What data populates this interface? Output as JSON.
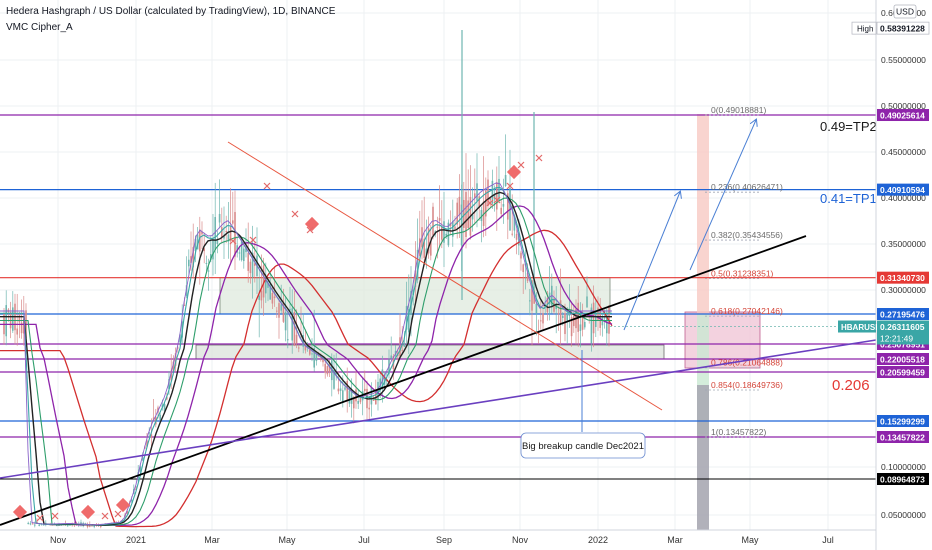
{
  "header": {
    "title": "Hedera Hashgraph / US Dollar (calculated by TradingView), 1D, BINANCE",
    "indicator": "VMC Cipher_A"
  },
  "currency_button": "USD",
  "high_label": "High",
  "colors": {
    "background": "#ffffff",
    "candle": "#6fb6b0",
    "candle_down": "#d88a8a",
    "grid": "#eef0f3",
    "axis_text": "#333333",
    "red_level": "#e53935",
    "blue_level": "#1e63d6",
    "purple_level": "#8e24aa",
    "black_level": "#000000",
    "trend_black": "#000000",
    "trend_purple": "#6a3fc0",
    "trend_red": "#e8563f",
    "box_green": "#dfeadd",
    "box_pink": "#f0c7d7",
    "arrow": "#4a7fd4",
    "ma_red": "#d32f2f",
    "ma_purple": "#8e24aa",
    "ma_green": "#2e9e6b",
    "ma_black": "#222222",
    "ma_teal": "#3aa6a6",
    "fib_line": "#a0a6b4",
    "fib_text": "#d4463a"
  },
  "chart_data": {
    "type": "candlestick",
    "symbol": "HBARUSD",
    "ylim": [
      0.03,
      0.61
    ],
    "x_ticks": [
      "Nov",
      "2021",
      "Mar",
      "May",
      "Jul",
      "Sep",
      "Nov",
      "2022",
      "Mar",
      "May",
      "Jul"
    ],
    "y_ticks": [
      "0.60000000",
      "0.55000000",
      "0.50000000",
      "0.45000000",
      "0.40000000",
      "0.35000000",
      "0.30000000",
      "0.10000000",
      "0.05000000"
    ],
    "price_badges": [
      {
        "label": "0.58391228",
        "value": 0.5839,
        "style": "high"
      },
      {
        "label": "0.49025614",
        "value": 0.4902,
        "style": "purple"
      },
      {
        "label": "0.40910594",
        "value": 0.4091,
        "style": "blue"
      },
      {
        "label": "0.31340730",
        "value": 0.3134,
        "style": "red"
      },
      {
        "label": "0.27195476",
        "value": 0.2719,
        "style": "blue"
      },
      {
        "label": "0.25078951",
        "value": 0.2508,
        "style": "purple"
      },
      {
        "label": "0.22005518",
        "value": 0.22,
        "style": "purple"
      },
      {
        "label": "0.20599459",
        "value": 0.206,
        "style": "purple"
      },
      {
        "label": "0.15299299",
        "value": 0.153,
        "style": "blue"
      },
      {
        "label": "0.13457822",
        "value": 0.1346,
        "style": "purple"
      },
      {
        "label": "0.08964873",
        "value": 0.0896,
        "style": "black"
      }
    ],
    "last_price": {
      "symbol": "HBARUSD",
      "price": "0.26311605",
      "countdown": "12:21:49",
      "value": 0.2631
    },
    "fib_levels": [
      {
        "label": "0(0.49018881)",
        "value": 0.4902
      },
      {
        "label": "0.236(0.40626471)",
        "value": 0.4063
      },
      {
        "label": "0.382(0.35434556)",
        "value": 0.3543
      },
      {
        "label": "0.5(0.31238351)",
        "value": 0.3124
      },
      {
        "label": "0.618(0.27042146)",
        "value": 0.2704
      },
      {
        "label": "0.786(0.21064888)",
        "value": 0.2106
      },
      {
        "label": "0.854(0.18649736)",
        "value": 0.1865
      },
      {
        "label": "1(0.13457822)",
        "value": 0.1346
      }
    ],
    "annotations": {
      "tp2": "0.49=TP2",
      "tp1": "0.41=TP1",
      "support": "0.206",
      "callout": "Big breakup candle Dec2021"
    },
    "price_path": [
      [
        0.03,
        0.04
      ],
      [
        0.05,
        0.037
      ],
      [
        0.08,
        0.038
      ],
      [
        0.11,
        0.036
      ],
      [
        0.14,
        0.04
      ],
      [
        0.155,
        0.08
      ],
      [
        0.17,
        0.14
      ],
      [
        0.19,
        0.18
      ],
      [
        0.2,
        0.22
      ],
      [
        0.21,
        0.28
      ],
      [
        0.225,
        0.36
      ],
      [
        0.24,
        0.35
      ],
      [
        0.26,
        0.37
      ],
      [
        0.28,
        0.34
      ],
      [
        0.3,
        0.31
      ],
      [
        0.32,
        0.28
      ],
      [
        0.335,
        0.26
      ],
      [
        0.35,
        0.24
      ],
      [
        0.37,
        0.215
      ],
      [
        0.39,
        0.19
      ],
      [
        0.41,
        0.175
      ],
      [
        0.43,
        0.18
      ],
      [
        0.45,
        0.22
      ],
      [
        0.47,
        0.29
      ],
      [
        0.48,
        0.35
      ],
      [
        0.495,
        0.37
      ],
      [
        0.51,
        0.36
      ],
      [
        0.53,
        0.38
      ],
      [
        0.55,
        0.4
      ],
      [
        0.57,
        0.41
      ],
      [
        0.585,
        0.38
      ],
      [
        0.6,
        0.32
      ],
      [
        0.615,
        0.27
      ],
      [
        0.63,
        0.29
      ],
      [
        0.645,
        0.27
      ],
      [
        0.655,
        0.27
      ]
    ]
  }
}
